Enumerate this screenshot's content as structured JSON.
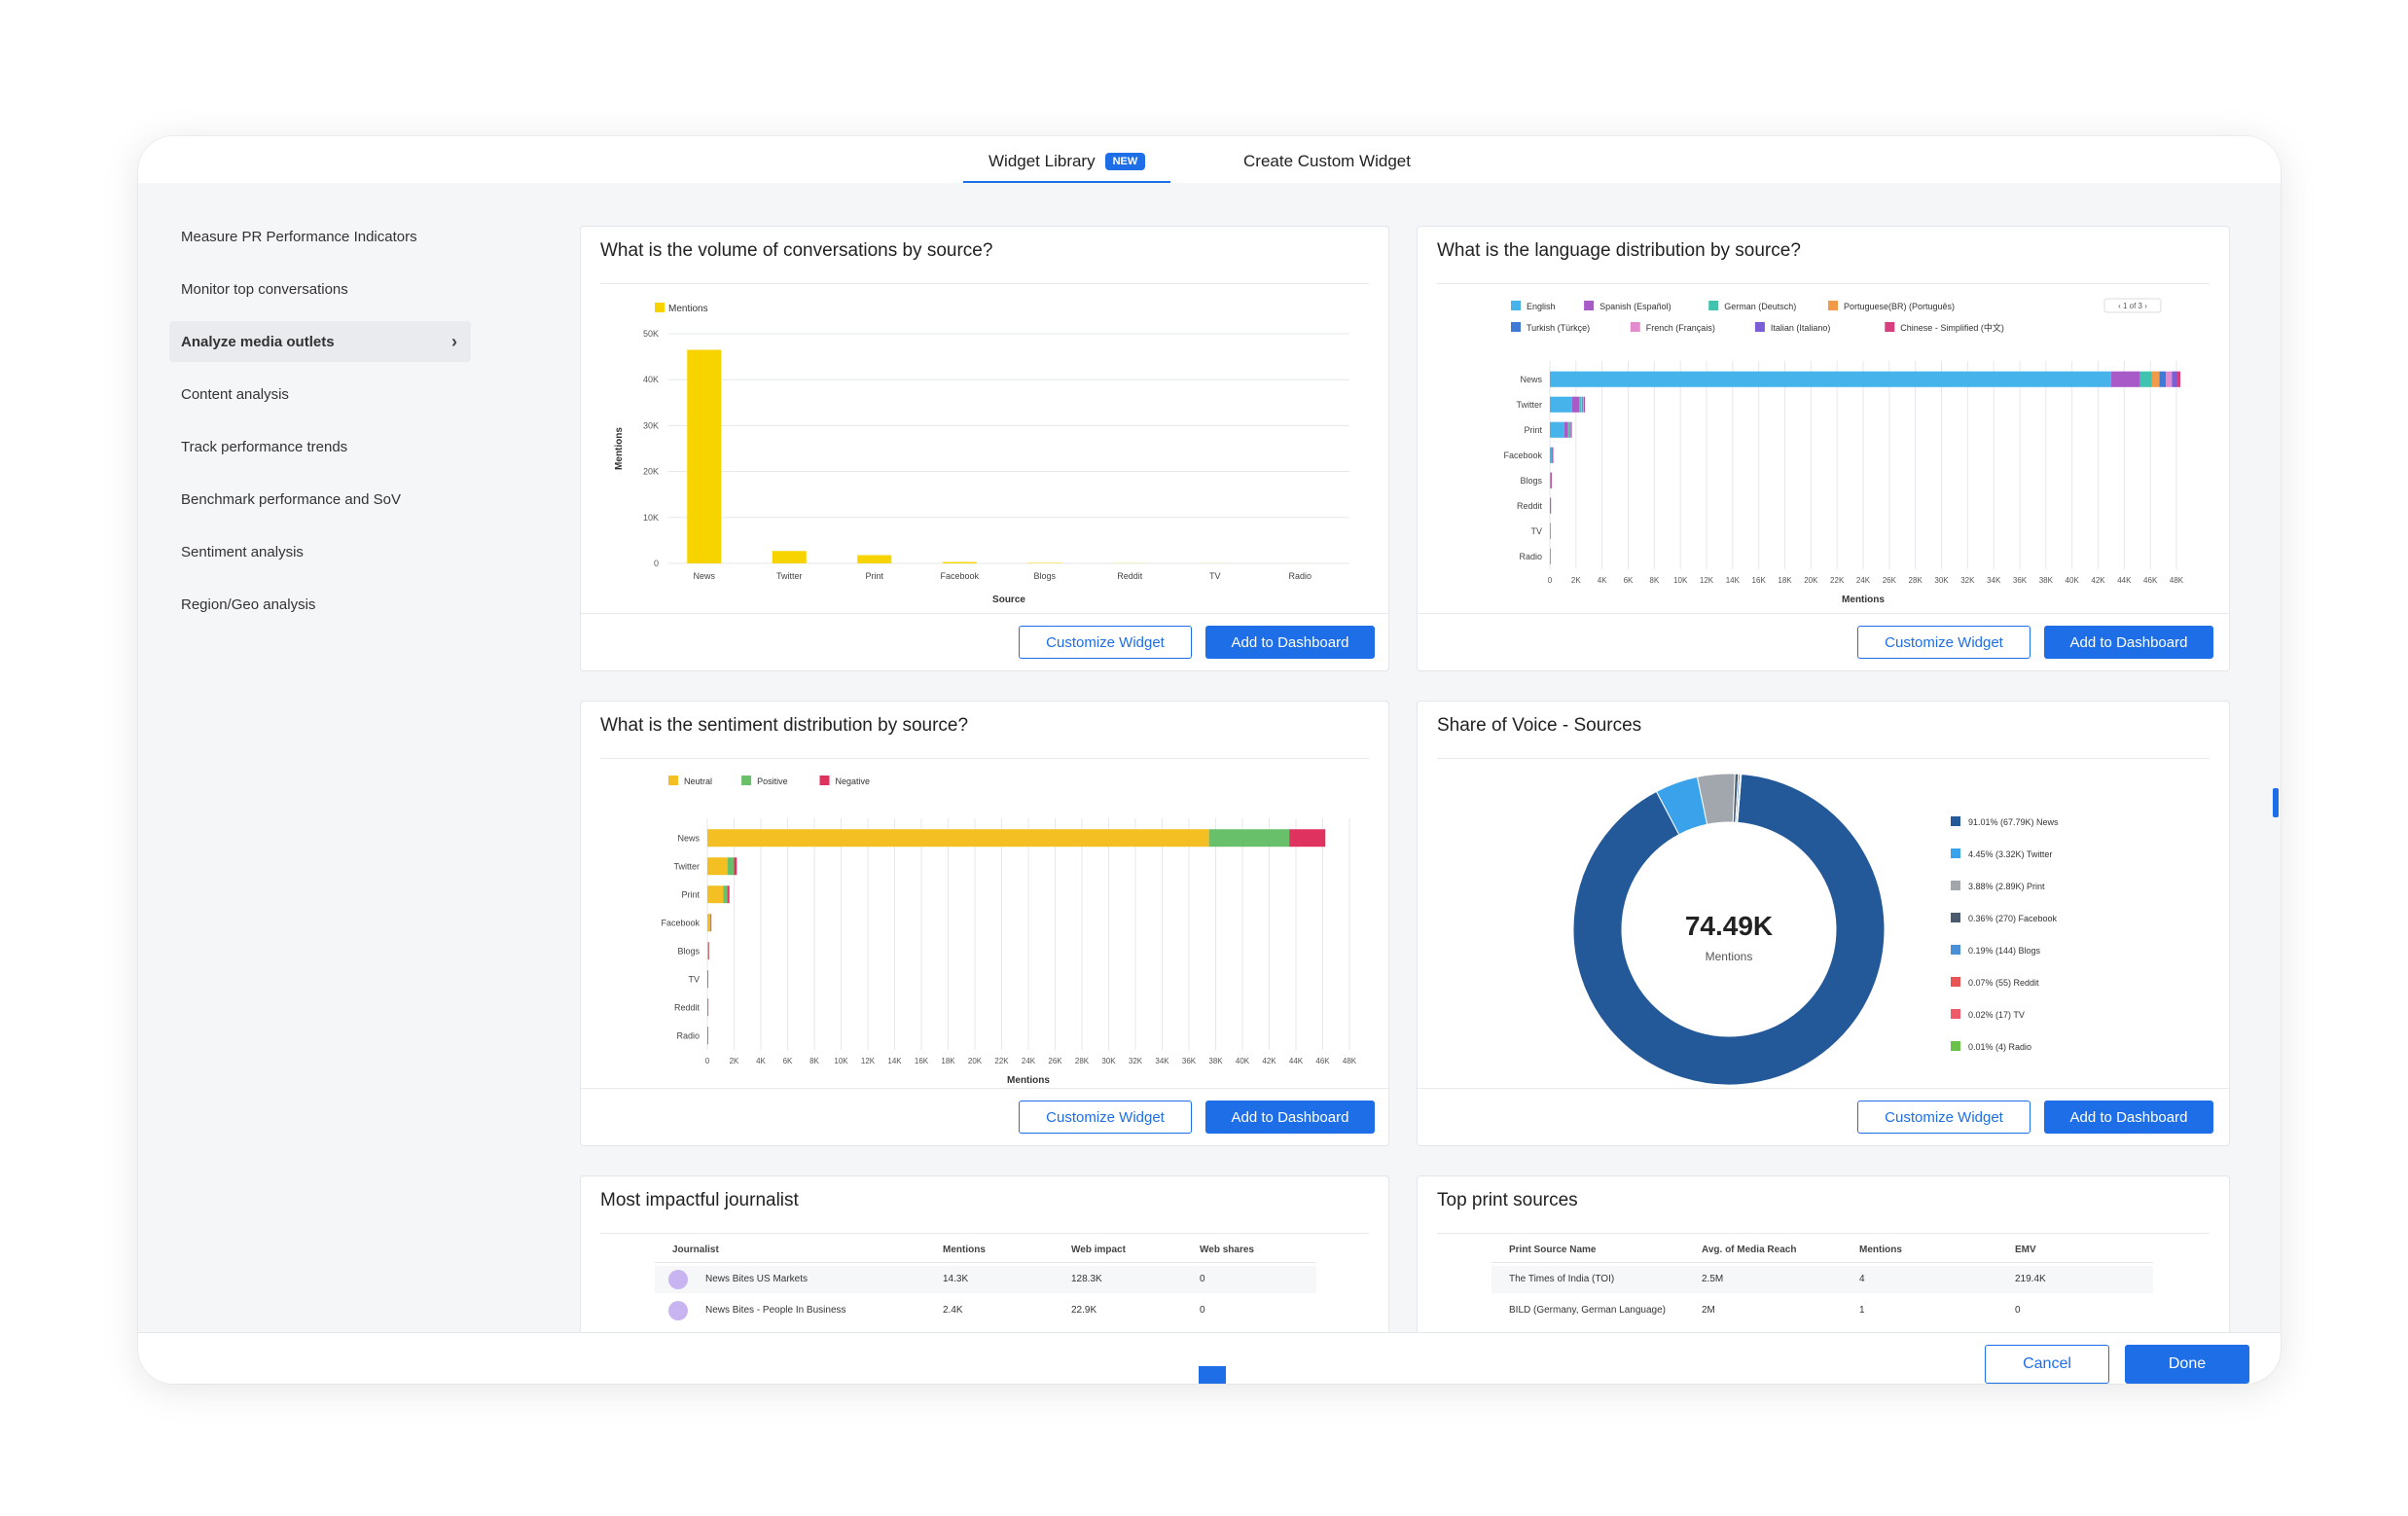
{
  "tabs": [
    {
      "label": "Widget Library",
      "badge": "NEW"
    },
    {
      "label": "Create Custom Widget"
    }
  ],
  "sidebar": {
    "items": [
      {
        "label": "Measure PR Performance Indicators"
      },
      {
        "label": "Monitor top conversations"
      },
      {
        "label": "Analyze media outlets"
      },
      {
        "label": "Content analysis"
      },
      {
        "label": "Track performance trends"
      },
      {
        "label": "Benchmark performance and SoV"
      },
      {
        "label": "Sentiment analysis"
      },
      {
        "label": "Region/Geo analysis"
      }
    ]
  },
  "buttons": {
    "customize": "Customize Widget",
    "add": "Add to Dashboard",
    "cancel": "Cancel",
    "done": "Done"
  },
  "cards": {
    "volume": {
      "title": "What is the volume of conversations by source?"
    },
    "language": {
      "title": "What is the language distribution by source?"
    },
    "sentiment": {
      "title": "What is the sentiment distribution by source?"
    },
    "sov": {
      "title": "Share of Voice - Sources"
    },
    "journalist": {
      "title": "Most impactful journalist"
    },
    "print": {
      "title": "Top print sources"
    }
  },
  "colors": {
    "accent": "#1e6ee8",
    "mentions": "#f7d400",
    "neutral": "#f4bf22",
    "positive": "#69c06a",
    "negative": "#e0325e"
  },
  "chart_data": [
    {
      "type": "bar",
      "title": "What is the volume of conversations by source?",
      "categories": [
        "News",
        "Twitter",
        "Print",
        "Facebook",
        "Blogs",
        "Reddit",
        "TV",
        "Radio"
      ],
      "series": [
        {
          "name": "Mentions",
          "values": [
            46500,
            2700,
            1800,
            300,
            100,
            40,
            20,
            10
          ],
          "color": "#f7d400"
        }
      ],
      "xlabel": "Source",
      "ylabel": "Mentions",
      "ylim": [
        0,
        50000
      ],
      "yticks": [
        "0",
        "10K",
        "20K",
        "30K",
        "40K",
        "50K"
      ],
      "legend": "top-left",
      "grid": true
    },
    {
      "type": "bar",
      "orientation": "horizontal",
      "stacked": true,
      "title": "What is the language distribution by source?",
      "categories": [
        "News",
        "Twitter",
        "Print",
        "Facebook",
        "Blogs",
        "Reddit",
        "TV",
        "Radio"
      ],
      "series": [
        {
          "name": "English",
          "color": "#46b4ea",
          "values": [
            43000,
            1700,
            1100,
            150,
            60,
            25,
            12,
            6
          ]
        },
        {
          "name": "Spanish (Español)",
          "color": "#a85ac8",
          "values": [
            2200,
            550,
            300,
            40,
            10,
            5,
            3,
            2
          ]
        },
        {
          "name": "German (Deutsch)",
          "color": "#40c4b0",
          "values": [
            900,
            150,
            80,
            10,
            5,
            2,
            1,
            1
          ]
        },
        {
          "name": "Portuguese(BR) (Português)",
          "color": "#f19a4a",
          "values": [
            600,
            80,
            50,
            5,
            3,
            1,
            1,
            0
          ]
        },
        {
          "name": "Turkish (Türkçe)",
          "color": "#3f7ad6",
          "values": [
            500,
            60,
            40,
            5,
            2,
            1,
            0,
            0
          ]
        },
        {
          "name": "French (Français)",
          "color": "#e48bd0",
          "values": [
            450,
            60,
            40,
            4,
            2,
            1,
            0,
            0
          ]
        },
        {
          "name": "Italian (Italiano)",
          "color": "#7b5ed6",
          "values": [
            350,
            40,
            30,
            3,
            1,
            1,
            0,
            0
          ]
        },
        {
          "name": "Chinese - Simplified (中文)",
          "color": "#d6407e",
          "values": [
            300,
            40,
            25,
            3,
            1,
            1,
            0,
            0
          ]
        }
      ],
      "xlabel": "Mentions",
      "xlim": [
        0,
        48000
      ],
      "xticks": [
        "0",
        "2K",
        "4K",
        "6K",
        "8K",
        "10K",
        "12K",
        "14K",
        "16K",
        "18K",
        "20K",
        "22K",
        "24K",
        "26K",
        "28K",
        "30K",
        "32K",
        "34K",
        "36K",
        "38K",
        "40K",
        "42K",
        "44K",
        "46K",
        "48K"
      ],
      "legend": "top",
      "legend_pager": "1 of 3",
      "grid": true
    },
    {
      "type": "bar",
      "orientation": "horizontal",
      "stacked": true,
      "title": "What is the sentiment distribution by source?",
      "categories": [
        "News",
        "Twitter",
        "Print",
        "Facebook",
        "Blogs",
        "TV",
        "Reddit",
        "Radio"
      ],
      "series": [
        {
          "name": "Neutral",
          "color": "#f4bf22",
          "values": [
            37500,
            1500,
            1200,
            200,
            70,
            20,
            30,
            8
          ]
        },
        {
          "name": "Positive",
          "color": "#69c06a",
          "values": [
            6000,
            500,
            300,
            60,
            20,
            5,
            8,
            2
          ]
        },
        {
          "name": "Negative",
          "color": "#e0325e",
          "values": [
            2700,
            200,
            150,
            30,
            10,
            3,
            5,
            1
          ]
        }
      ],
      "xlabel": "Mentions",
      "xlim": [
        0,
        48000
      ],
      "xticks": [
        "0",
        "2K",
        "4K",
        "6K",
        "8K",
        "10K",
        "12K",
        "14K",
        "16K",
        "18K",
        "20K",
        "22K",
        "24K",
        "26K",
        "28K",
        "30K",
        "32K",
        "34K",
        "36K",
        "38K",
        "40K",
        "42K",
        "44K",
        "46K",
        "48K"
      ],
      "legend": "top",
      "grid": true
    },
    {
      "type": "pie",
      "donut": true,
      "title": "Share of Voice - Sources",
      "center_value": "74.49K",
      "center_label": "Mentions",
      "slices": [
        {
          "label": "91.01% (67.79K) News",
          "value": 91.01,
          "color": "#245999"
        },
        {
          "label": "4.45% (3.32K) Twitter",
          "value": 4.45,
          "color": "#3aa2ea"
        },
        {
          "label": "3.88% (2.89K) Print",
          "value": 3.88,
          "color": "#a2a7ad"
        },
        {
          "label": "0.36% (270) Facebook",
          "value": 0.36,
          "color": "#4b5b6e"
        },
        {
          "label": "0.19% (144) Blogs",
          "value": 0.19,
          "color": "#4a90d6"
        },
        {
          "label": "0.07% (55) Reddit",
          "value": 0.07,
          "color": "#e85454"
        },
        {
          "label": "0.02% (17) TV",
          "value": 0.02,
          "color": "#ef5a6a"
        },
        {
          "label": "0.01% (4) Radio",
          "value": 0.01,
          "color": "#6ac24b"
        }
      ],
      "legend": "right"
    },
    {
      "type": "table",
      "title": "Most impactful journalist",
      "columns": [
        "Journalist",
        "Mentions",
        "Web impact",
        "Web shares"
      ],
      "rows": [
        [
          "News Bites US Markets",
          "14.3K",
          "128.3K",
          "0"
        ],
        [
          "News Bites - People In Business",
          "2.4K",
          "22.9K",
          "0"
        ]
      ]
    },
    {
      "type": "table",
      "title": "Top print sources",
      "columns": [
        "Print Source Name",
        "Avg. of Media Reach",
        "Mentions",
        "EMV"
      ],
      "rows": [
        [
          "The Times of India (TOI)",
          "2.5M",
          "4",
          "219.4K"
        ],
        [
          "BILD (Germany, German Language)",
          "2M",
          "1",
          "0"
        ]
      ]
    }
  ]
}
